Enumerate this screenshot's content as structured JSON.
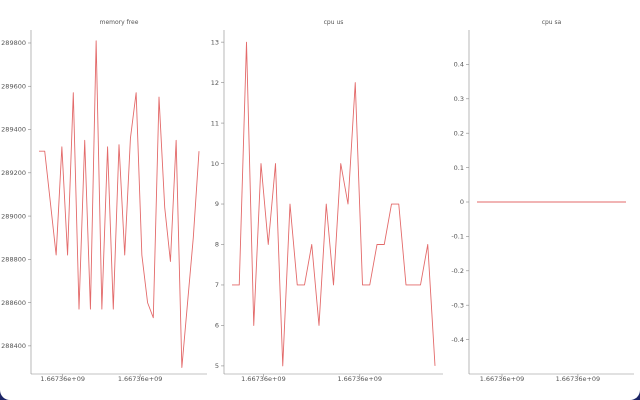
{
  "colors": {
    "line": "#e36a6a",
    "axis": "#888888",
    "text": "#555555"
  },
  "chart_data": [
    {
      "type": "line",
      "title": "memory free",
      "xlabel": "",
      "ylabel": "",
      "ylim": [
        288270,
        289860
      ],
      "yticks": [
        288400,
        288600,
        288800,
        289000,
        289200,
        289400,
        289600,
        289800
      ],
      "xticks": [
        "1.66736e+09",
        "1.66736e+09"
      ],
      "grid": false,
      "series": [
        {
          "values": [
            289300,
            289300,
            289060,
            288820,
            289320,
            288820,
            289570,
            288570,
            289350,
            288570,
            289810,
            288570,
            289320,
            288570,
            289330,
            288820,
            289360,
            289570,
            288820,
            288600,
            288530,
            289550,
            289040,
            288790,
            289350,
            288300,
            288600,
            288900,
            289300
          ]
        }
      ]
    },
    {
      "type": "line",
      "title": "cpu us",
      "xlabel": "",
      "ylabel": "",
      "ylim": [
        4.8,
        13.3
      ],
      "yticks": [
        5,
        6,
        7,
        8,
        9,
        10,
        11,
        12,
        13
      ],
      "xticks": [
        "1.66736e+09",
        "1.66736e+09"
      ],
      "grid": false,
      "series": [
        {
          "values": [
            7,
            7,
            13,
            6,
            10,
            8,
            10,
            5,
            9,
            7,
            7,
            8,
            6,
            9,
            7,
            10,
            9,
            12,
            7,
            7,
            8,
            8,
            9,
            9,
            7,
            7,
            7,
            8,
            5
          ]
        }
      ]
    },
    {
      "type": "line",
      "title": "cpu sa",
      "xlabel": "",
      "ylabel": "",
      "ylim": [
        -0.5,
        0.5
      ],
      "yticks": [
        -0.4,
        -0.3,
        -0.2,
        -0.1,
        0,
        0.1,
        0.2,
        0.3,
        0.4
      ],
      "xticks": [
        "1.66736e+09",
        "1.66736e+09"
      ],
      "grid": false,
      "series": [
        {
          "values": [
            0,
            0,
            0,
            0,
            0,
            0,
            0,
            0,
            0,
            0,
            0,
            0,
            0,
            0,
            0,
            0,
            0,
            0,
            0,
            0,
            0,
            0,
            0,
            0,
            0,
            0,
            0,
            0,
            0
          ]
        }
      ]
    }
  ]
}
